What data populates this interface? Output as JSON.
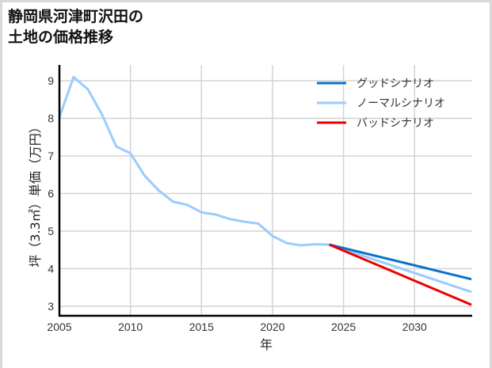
{
  "title_lines": [
    "静岡県河津町沢田の",
    "土地の価格推移"
  ],
  "chart_data": {
    "type": "line",
    "title": "静岡県河津町沢田の土地の価格推移",
    "xlabel": "年",
    "ylabel": "坪（3.3㎡）単価（万円）",
    "xlim": [
      2005,
      2034
    ],
    "ylim": [
      2.75,
      9.35
    ],
    "xticks": [
      2005,
      2010,
      2015,
      2020,
      2025,
      2030
    ],
    "yticks": [
      3,
      4,
      5,
      6,
      7,
      8,
      9
    ],
    "grid": true,
    "legend_position": "upper right",
    "series": [
      {
        "name": "グッドシナリオ",
        "color": "#0a72c9",
        "x": [
          2024,
          2034
        ],
        "y": [
          4.64,
          3.72
        ]
      },
      {
        "name": "ノーマルシナリオ",
        "color": "#99ccff",
        "x": [
          2005,
          2006,
          2007,
          2008,
          2009,
          2010,
          2011,
          2012,
          2013,
          2014,
          2015,
          2016,
          2017,
          2018,
          2019,
          2020,
          2021,
          2022,
          2023,
          2024,
          2034
        ],
        "y": [
          8.03,
          9.1,
          8.77,
          8.1,
          7.25,
          7.07,
          6.47,
          6.08,
          5.78,
          5.7,
          5.5,
          5.44,
          5.32,
          5.25,
          5.2,
          4.87,
          4.68,
          4.62,
          4.65,
          4.64,
          3.38
        ]
      },
      {
        "name": "バッドシナリオ",
        "color": "#ee0000",
        "x": [
          2024,
          2034
        ],
        "y": [
          4.64,
          3.04
        ]
      }
    ]
  }
}
